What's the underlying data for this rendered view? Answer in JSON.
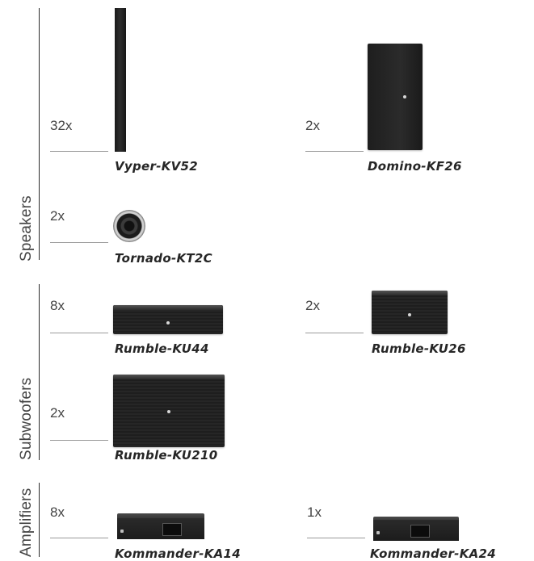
{
  "sections": [
    {
      "label": "Speakers"
    },
    {
      "label": "Subwoofers"
    },
    {
      "label": "Amplifiers"
    }
  ],
  "products": [
    {
      "qty": "32x",
      "model": "Vyper-KV52"
    },
    {
      "qty": "2x",
      "model": "Domino-KF26"
    },
    {
      "qty": "2x",
      "model": "Tornado-KT2C"
    },
    {
      "qty": "8x",
      "model": "Rumble-KU44"
    },
    {
      "qty": "2x",
      "model": "Rumble-KU26"
    },
    {
      "qty": "2x",
      "model": "Rumble-KU210"
    },
    {
      "qty": "8x",
      "model": "Kommander-KA14"
    },
    {
      "qty": "1x",
      "model": "Kommander-KA24"
    }
  ]
}
